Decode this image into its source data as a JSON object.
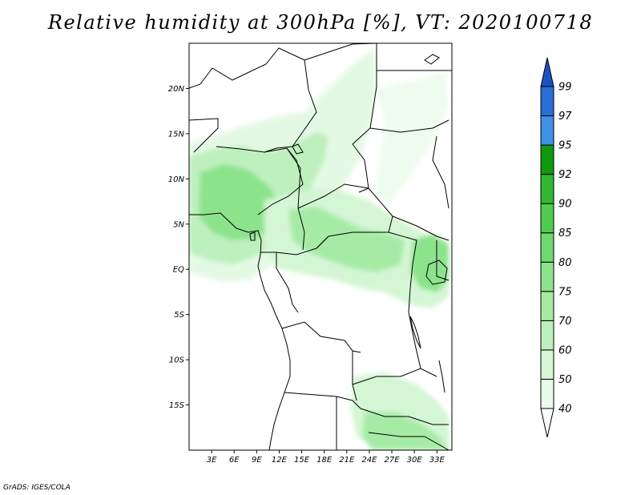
{
  "title": "Relative humidity at 300hPa [%], VT: 2020100718",
  "credit": "GrADS: IGES/COLA",
  "map": {
    "lon_range": [
      0,
      35
    ],
    "lat_range": [
      -20,
      25
    ],
    "lat_ticks": [
      {
        "value": 20,
        "label": "20N"
      },
      {
        "value": 15,
        "label": "15N"
      },
      {
        "value": 10,
        "label": "10N"
      },
      {
        "value": 5,
        "label": "5N"
      },
      {
        "value": 0,
        "label": "EQ"
      },
      {
        "value": -5,
        "label": "5S"
      },
      {
        "value": -10,
        "label": "10S"
      },
      {
        "value": -15,
        "label": "15S"
      }
    ],
    "lon_ticks": [
      {
        "value": 3,
        "label": "3E"
      },
      {
        "value": 6,
        "label": "6E"
      },
      {
        "value": 9,
        "label": "9E"
      },
      {
        "value": 12,
        "label": "12E"
      },
      {
        "value": 15,
        "label": "15E"
      },
      {
        "value": 18,
        "label": "18E"
      },
      {
        "value": 21,
        "label": "21E"
      },
      {
        "value": 24,
        "label": "24E"
      },
      {
        "value": 27,
        "label": "27E"
      },
      {
        "value": 30,
        "label": "30E"
      },
      {
        "value": 33,
        "label": "33E"
      }
    ]
  },
  "colorbar": {
    "levels": [
      "40",
      "50",
      "60",
      "70",
      "75",
      "80",
      "85",
      "90",
      "92",
      "95",
      "97",
      "99"
    ],
    "colors": [
      "#ffffff",
      "#e9fbe9",
      "#d4f6d4",
      "#bdf0bd",
      "#a5eba5",
      "#8ce38c",
      "#6ed96e",
      "#4fcc4f",
      "#30b930",
      "#0f990f",
      "#3f92e6",
      "#2870d8",
      "#1a52bf"
    ]
  }
}
